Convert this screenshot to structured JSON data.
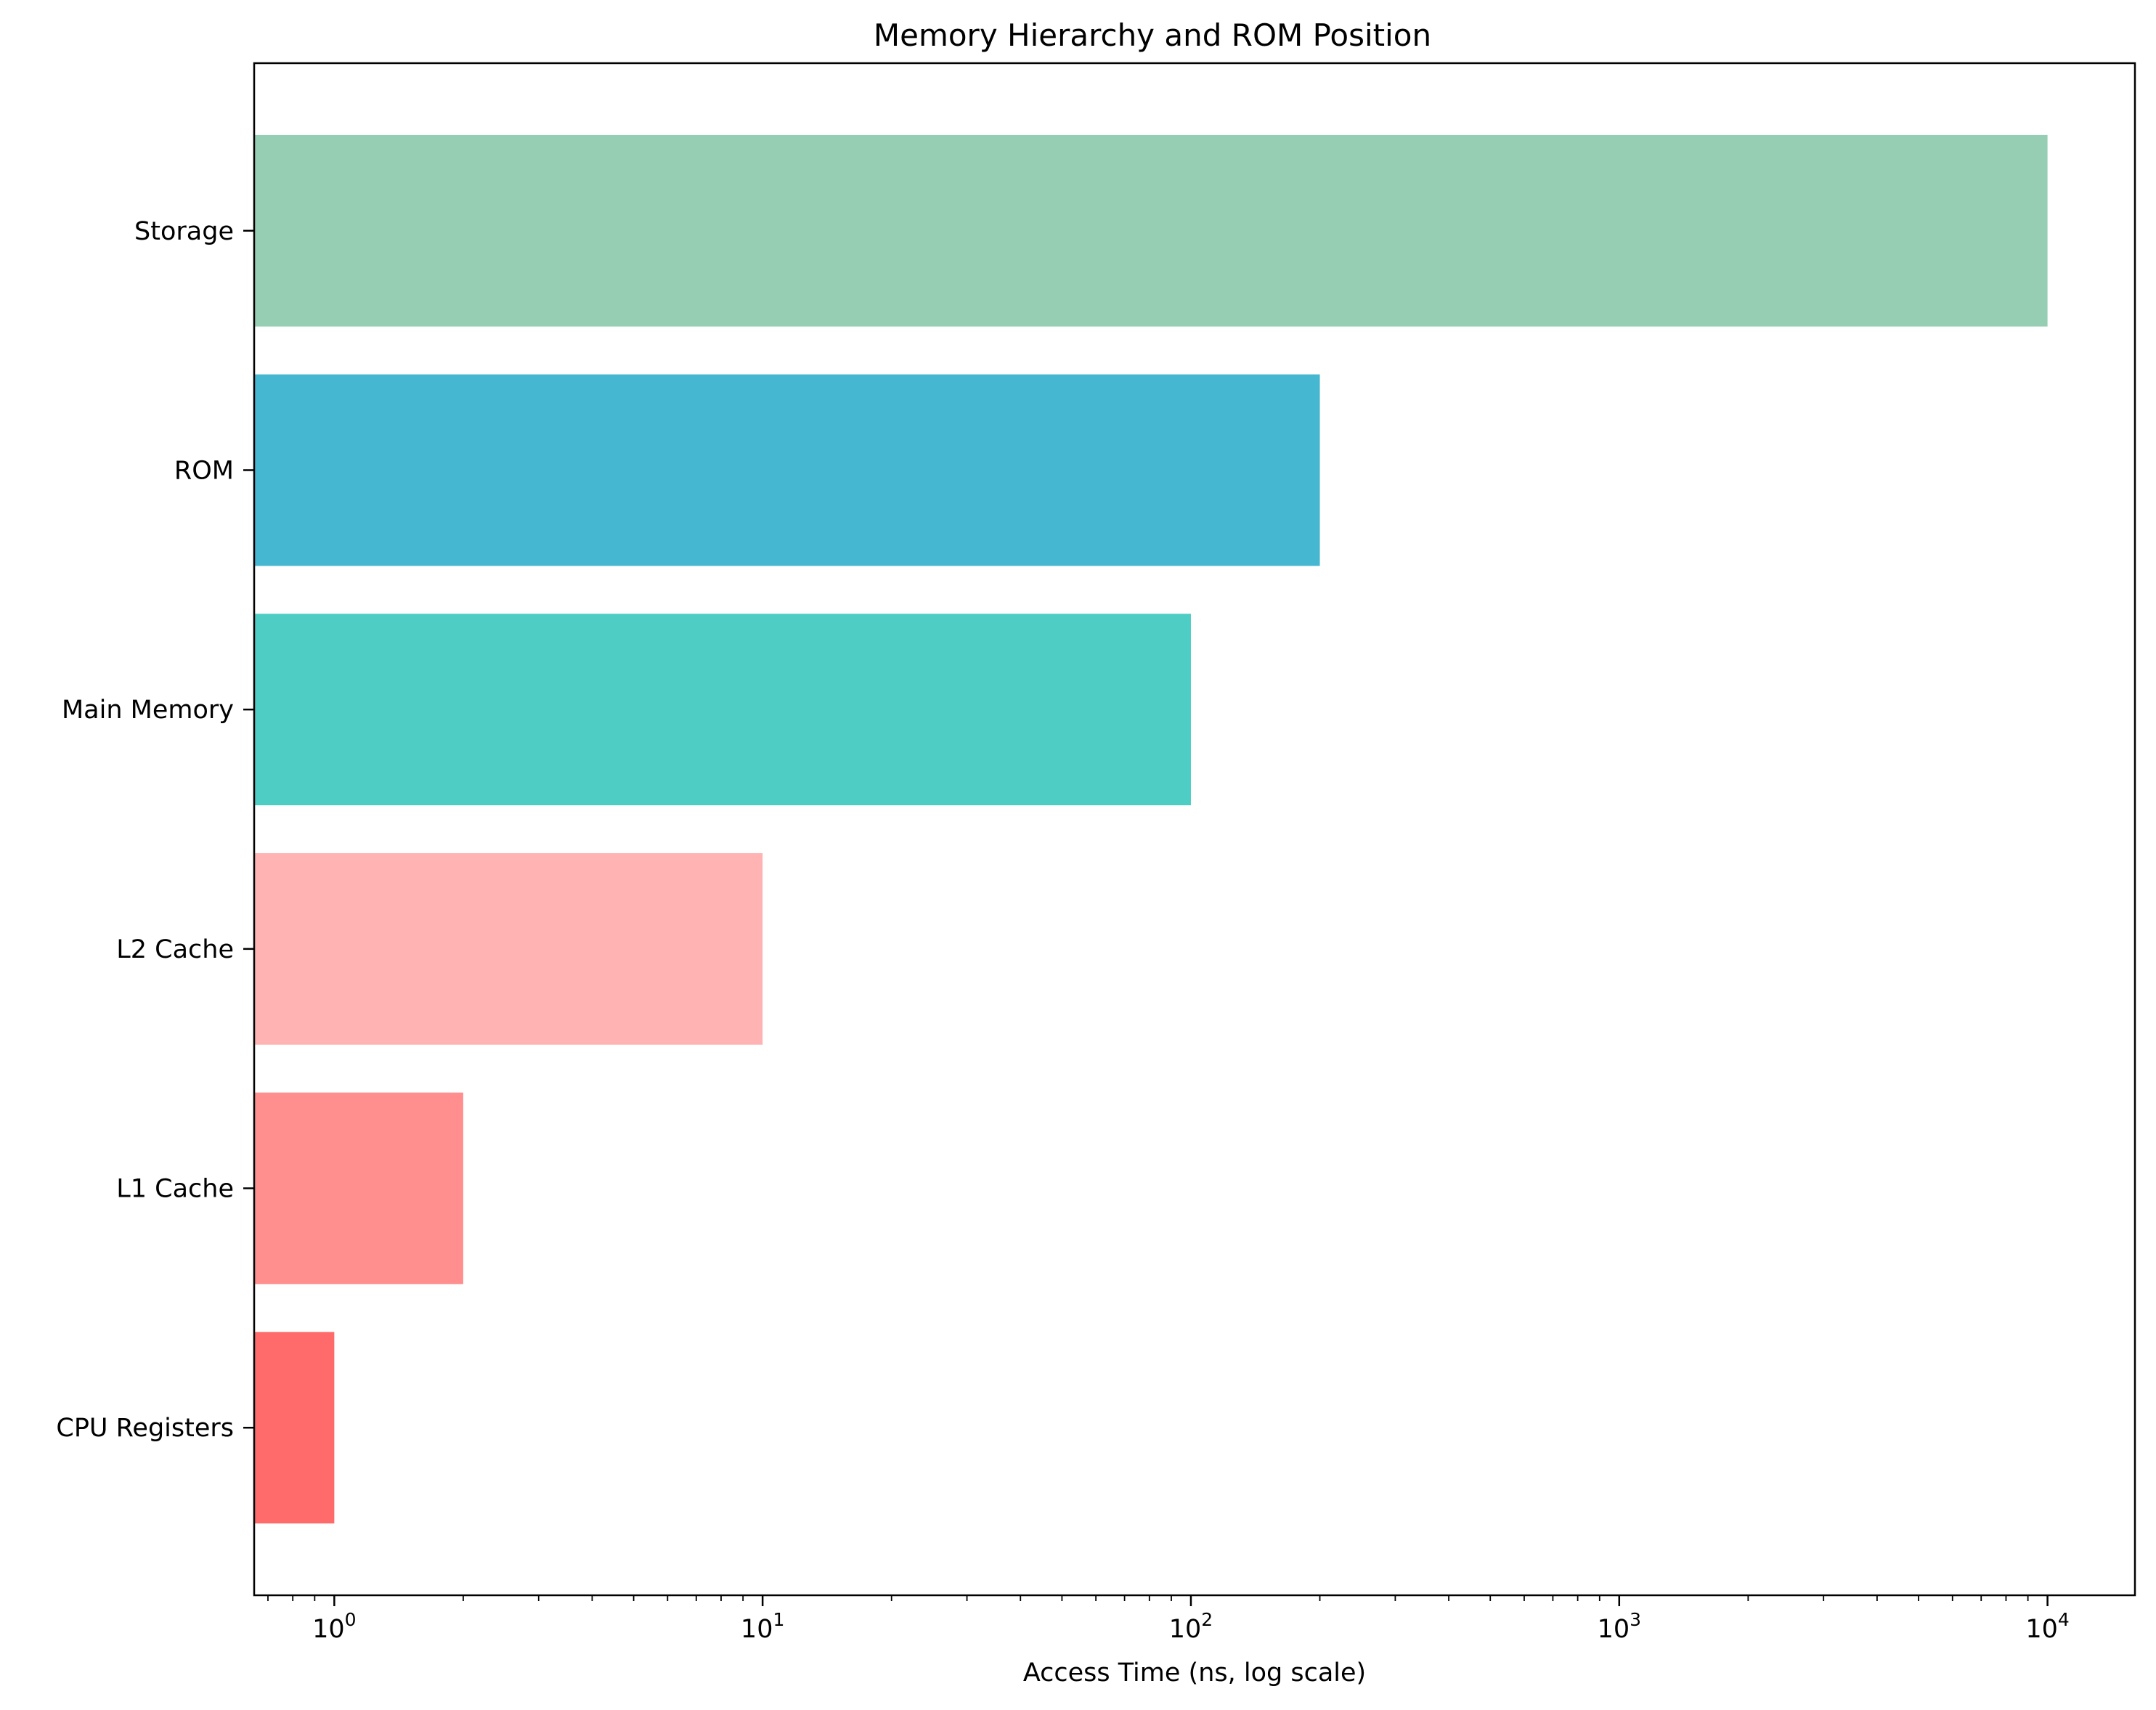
{
  "chart_data": {
    "type": "bar",
    "orientation": "horizontal",
    "title": "Memory Hierarchy and ROM Position",
    "xlabel": "Access Time (ns, log scale)",
    "ylabel": "",
    "xscale": "log",
    "xlim": [
      0.65,
      16000
    ],
    "categories": [
      "CPU Registers",
      "L1 Cache",
      "L2 Cache",
      "Main Memory",
      "ROM",
      "Storage"
    ],
    "values": [
      1,
      2,
      10,
      100,
      200,
      10000
    ],
    "colors": [
      "#FF6B6B",
      "#FF8E8E",
      "#FFB3B3",
      "#4ECDC4",
      "#45B7D1",
      "#96CEB4"
    ],
    "x_ticks": [
      {
        "value": 1,
        "base": "10",
        "exp": "0"
      },
      {
        "value": 10,
        "base": "10",
        "exp": "1"
      },
      {
        "value": 100,
        "base": "10",
        "exp": "2"
      },
      {
        "value": 1000,
        "base": "10",
        "exp": "3"
      },
      {
        "value": 10000,
        "base": "10",
        "exp": "4"
      }
    ],
    "grid": false,
    "legend": "none"
  }
}
